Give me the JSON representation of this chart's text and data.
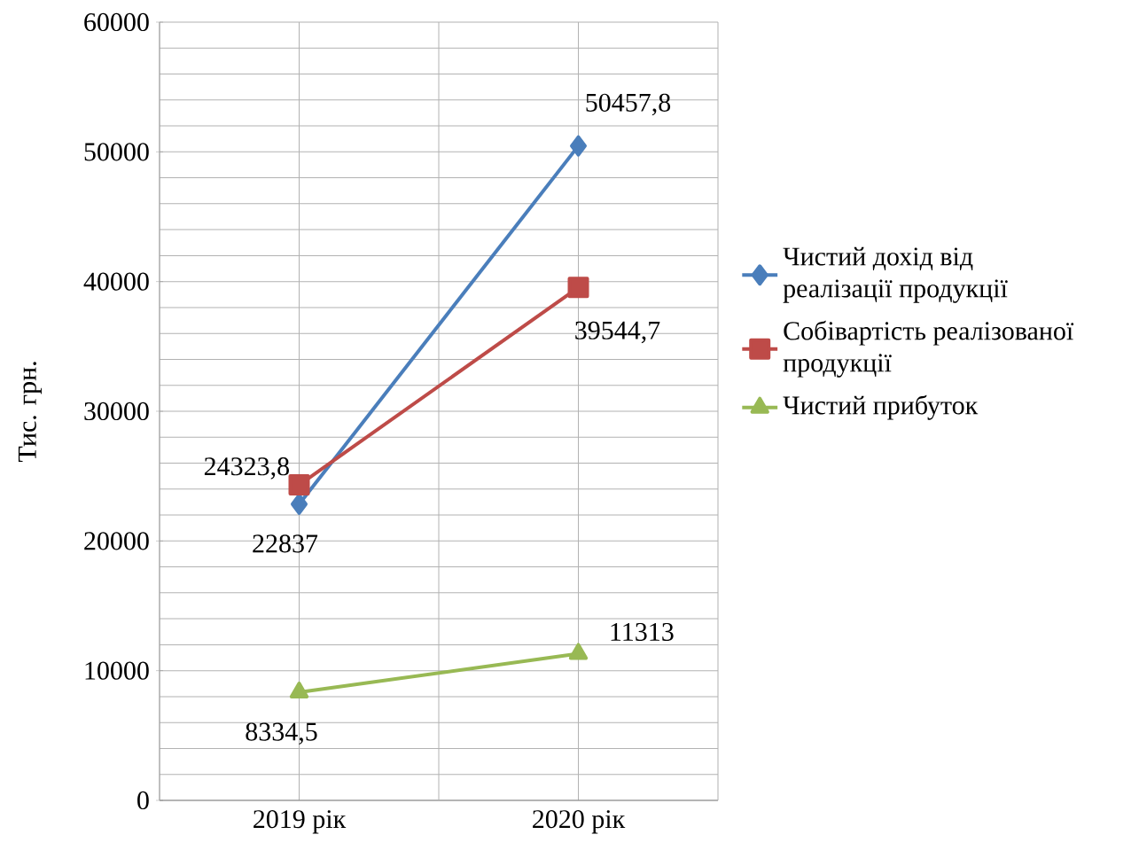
{
  "chart_data": {
    "type": "line",
    "ylabel": "Тис. грн.",
    "categories": [
      "2019 рік",
      "2020 рік"
    ],
    "series": [
      {
        "name": "Чистий дохід від реалізації продукції",
        "color": "#4a7ebb",
        "marker": "diamond",
        "values": [
          22837,
          50457.8
        ],
        "value_labels": [
          "22837",
          "50457,8"
        ]
      },
      {
        "name": "Собівартість реалізованої продукції",
        "color": "#be4b48",
        "marker": "square",
        "values": [
          24323.8,
          39544.7
        ],
        "value_labels": [
          "24323,8",
          "39544,7"
        ]
      },
      {
        "name": "Чистий прибуток",
        "color": "#98b954",
        "marker": "triangle",
        "values": [
          8334.5,
          11313
        ],
        "value_labels": [
          "8334,5",
          "11313"
        ]
      }
    ],
    "ylim": [
      0,
      60000
    ],
    "yticks": [
      0,
      10000,
      20000,
      30000,
      40000,
      50000,
      60000
    ],
    "grid": true,
    "legend": "right",
    "line_style": "solid"
  }
}
